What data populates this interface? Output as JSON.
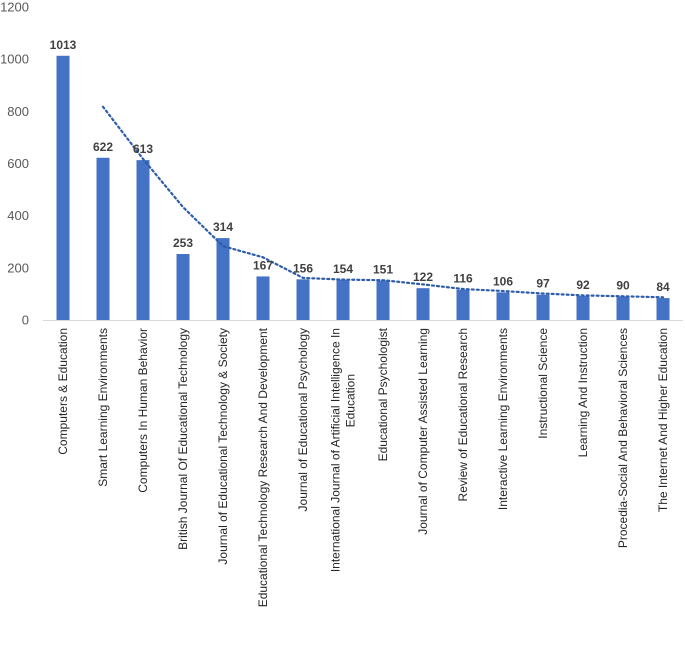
{
  "chart_data": {
    "type": "bar",
    "title": "",
    "xlabel": "",
    "ylabel": "",
    "ylim": [
      0,
      1200
    ],
    "yticks": [
      0,
      200,
      400,
      600,
      800,
      1000,
      1200
    ],
    "grid": false,
    "legend": "none",
    "bar_color": "#4472C4",
    "trendline": {
      "type": "moving-average",
      "period": 2,
      "style": "dotted",
      "color": "#2E5DA8"
    },
    "categories": [
      [
        "Computers & Education"
      ],
      [
        "Smart Learning Environments"
      ],
      [
        "Computers In Human Behavior"
      ],
      [
        "British Journal Of Educational Technology"
      ],
      [
        "Journal of Educational Technology & Society"
      ],
      [
        "Educational Technology Research And Development"
      ],
      [
        "Journal of Educational Psychology"
      ],
      [
        "International Journal of Artificial Intelligence In",
        "Education"
      ],
      [
        "Educational Psychologist"
      ],
      [
        "Journal of Computer Assisted Learning"
      ],
      [
        "Review of Educational Research"
      ],
      [
        "Interactive Learning Environments"
      ],
      [
        "Instructional Science"
      ],
      [
        "Learning And Instruction"
      ],
      [
        "Procedia-Social And Behavioral Sciences"
      ],
      [
        "The Internet And Higher Education"
      ]
    ],
    "values": [
      1013,
      622,
      613,
      253,
      314,
      167,
      156,
      154,
      151,
      122,
      116,
      106,
      97,
      92,
      90,
      84
    ]
  }
}
